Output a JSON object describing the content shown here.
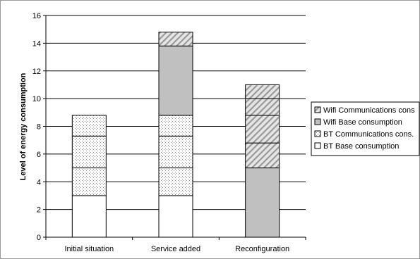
{
  "chart_data": {
    "type": "bar",
    "stacked": true,
    "title": "",
    "xlabel": "",
    "ylabel": "Level of energy consumption",
    "ylim": [
      0,
      16
    ],
    "yticks": [
      0,
      2,
      4,
      6,
      8,
      10,
      12,
      14,
      16
    ],
    "grid": true,
    "legend_position": "right",
    "categories": [
      "Initial situation",
      "Service added",
      "Reconfiguration"
    ],
    "series": [
      {
        "name": "BT Base consumption",
        "fill": "white",
        "values": [
          3,
          3,
          0
        ]
      },
      {
        "name": "BT Communications cons.",
        "fill": "dotted",
        "values": [
          5.8,
          5.8,
          0
        ]
      },
      {
        "name": "Wifi Base consumption",
        "fill": "#c0c0c0",
        "values": [
          0,
          5,
          5
        ]
      },
      {
        "name": "Wifi Communications cons",
        "fill": "hatched",
        "values": [
          0,
          1,
          6
        ]
      }
    ],
    "segment_boundaries": [
      [
        3,
        5,
        7.3,
        8.8
      ],
      [
        3,
        5,
        7.3,
        8.8,
        13.8,
        14.8
      ],
      [
        5,
        6.8,
        8.8,
        10,
        11
      ]
    ],
    "legend_order": [
      "Wifi Communications cons",
      "Wifi Base consumption",
      "BT Communications cons.",
      "BT Base consumption"
    ]
  }
}
